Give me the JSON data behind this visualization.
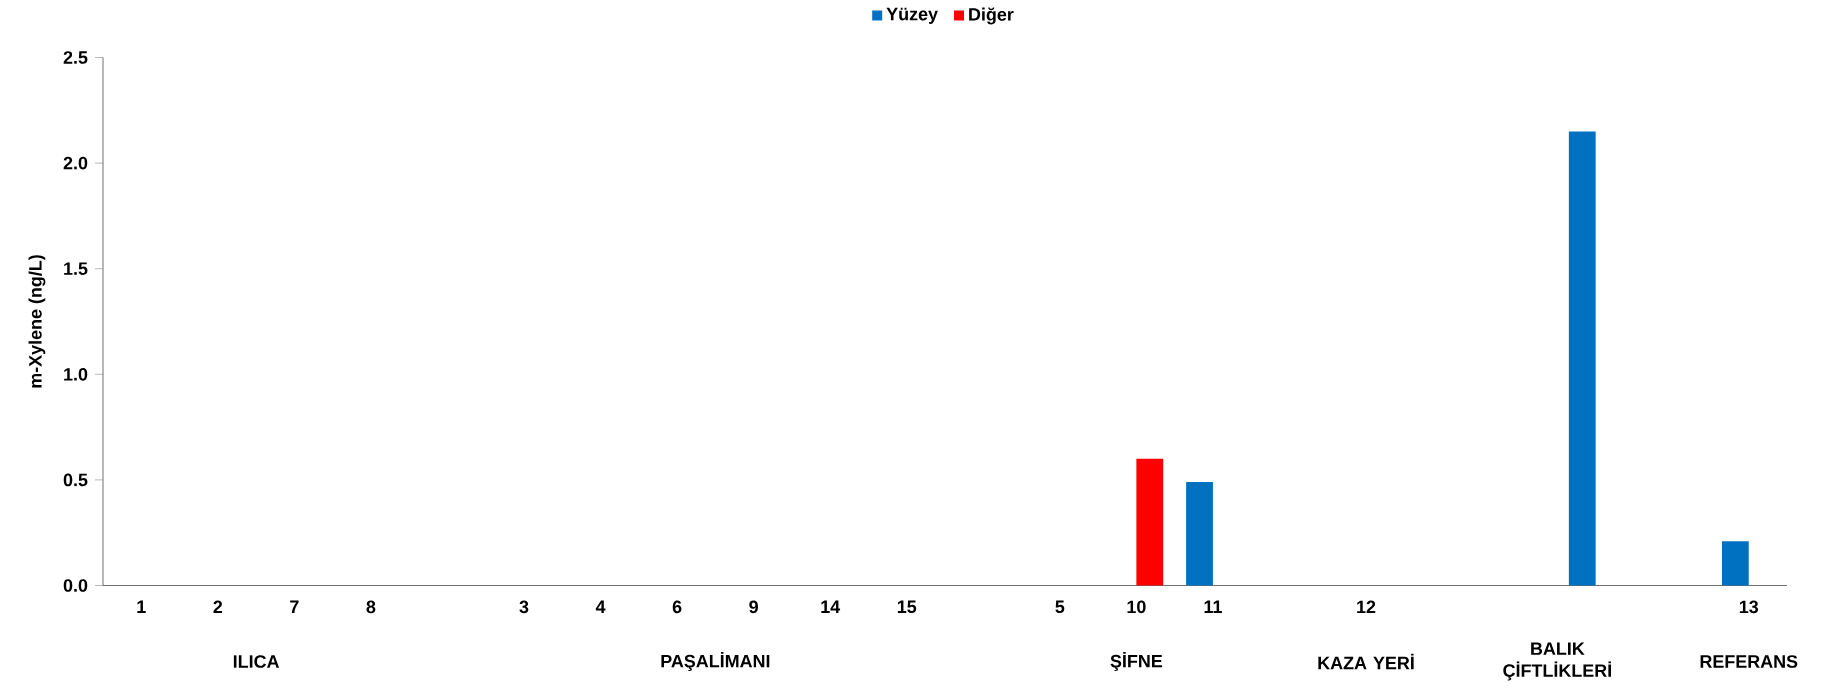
{
  "chart_data": {
    "type": "bar",
    "ylabel": "m-Xylene (ng/L)",
    "categories": [
      "1",
      "2",
      "7",
      "8",
      null,
      "3",
      "4",
      "6",
      "9",
      "14",
      "15",
      null,
      "5",
      "10",
      "11",
      null,
      "12",
      null,
      null,
      null,
      null,
      "13"
    ],
    "series": [
      {
        "name": "Yüzey",
        "color": "#0070c0",
        "values": [
          0,
          0,
          0,
          0,
          null,
          0,
          0,
          0,
          0,
          0,
          0,
          null,
          0,
          null,
          0.49,
          null,
          0,
          null,
          0,
          2.15,
          null,
          0.21
        ]
      },
      {
        "name": "Diğer",
        "color": "#ff0000",
        "values": [
          null,
          null,
          null,
          null,
          null,
          null,
          null,
          null,
          null,
          null,
          null,
          null,
          null,
          0.6,
          null,
          null,
          null,
          null,
          null,
          null,
          null,
          null
        ]
      }
    ],
    "ylim": [
      0,
      2.5
    ],
    "yticks": [
      {
        "value": 0,
        "label": "0.0"
      },
      {
        "value": 0.5,
        "label": "0.5"
      },
      {
        "value": 1,
        "label": "1.0"
      },
      {
        "value": 1.5,
        "label": "1.5"
      },
      {
        "value": 2,
        "label": "2.0"
      },
      {
        "value": 2.5,
        "label": "2.5"
      }
    ],
    "annotations": [
      "ILICA",
      "PAŞALİMANI",
      "ŞİFNE",
      "KAZA YERİ",
      "BALIK ÇİFTLİKLERİ",
      "REFERANS"
    ],
    "legend": "top"
  }
}
